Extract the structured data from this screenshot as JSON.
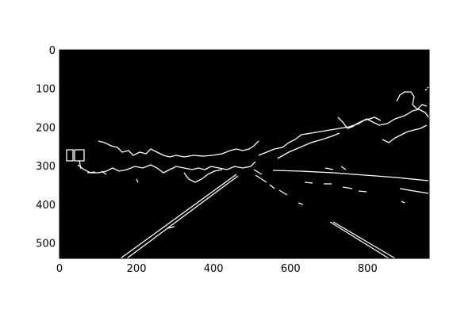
{
  "figure": {
    "image": {
      "width": 960,
      "height": 540,
      "background_color": "#000000",
      "edge_color": "#ffffff",
      "content": "canny-edge-map-of-road"
    },
    "axes": {
      "xlim": [
        0,
        960
      ],
      "ylim": [
        540,
        0
      ],
      "x_ticks": [
        0,
        200,
        400,
        600,
        800
      ],
      "y_ticks": [
        0,
        100,
        200,
        300,
        400,
        500
      ],
      "x_tick_labels": [
        "0",
        "200",
        "400",
        "600",
        "800"
      ],
      "y_tick_labels": [
        "0",
        "100",
        "200",
        "300",
        "400",
        "500"
      ],
      "grid": false
    }
  }
}
